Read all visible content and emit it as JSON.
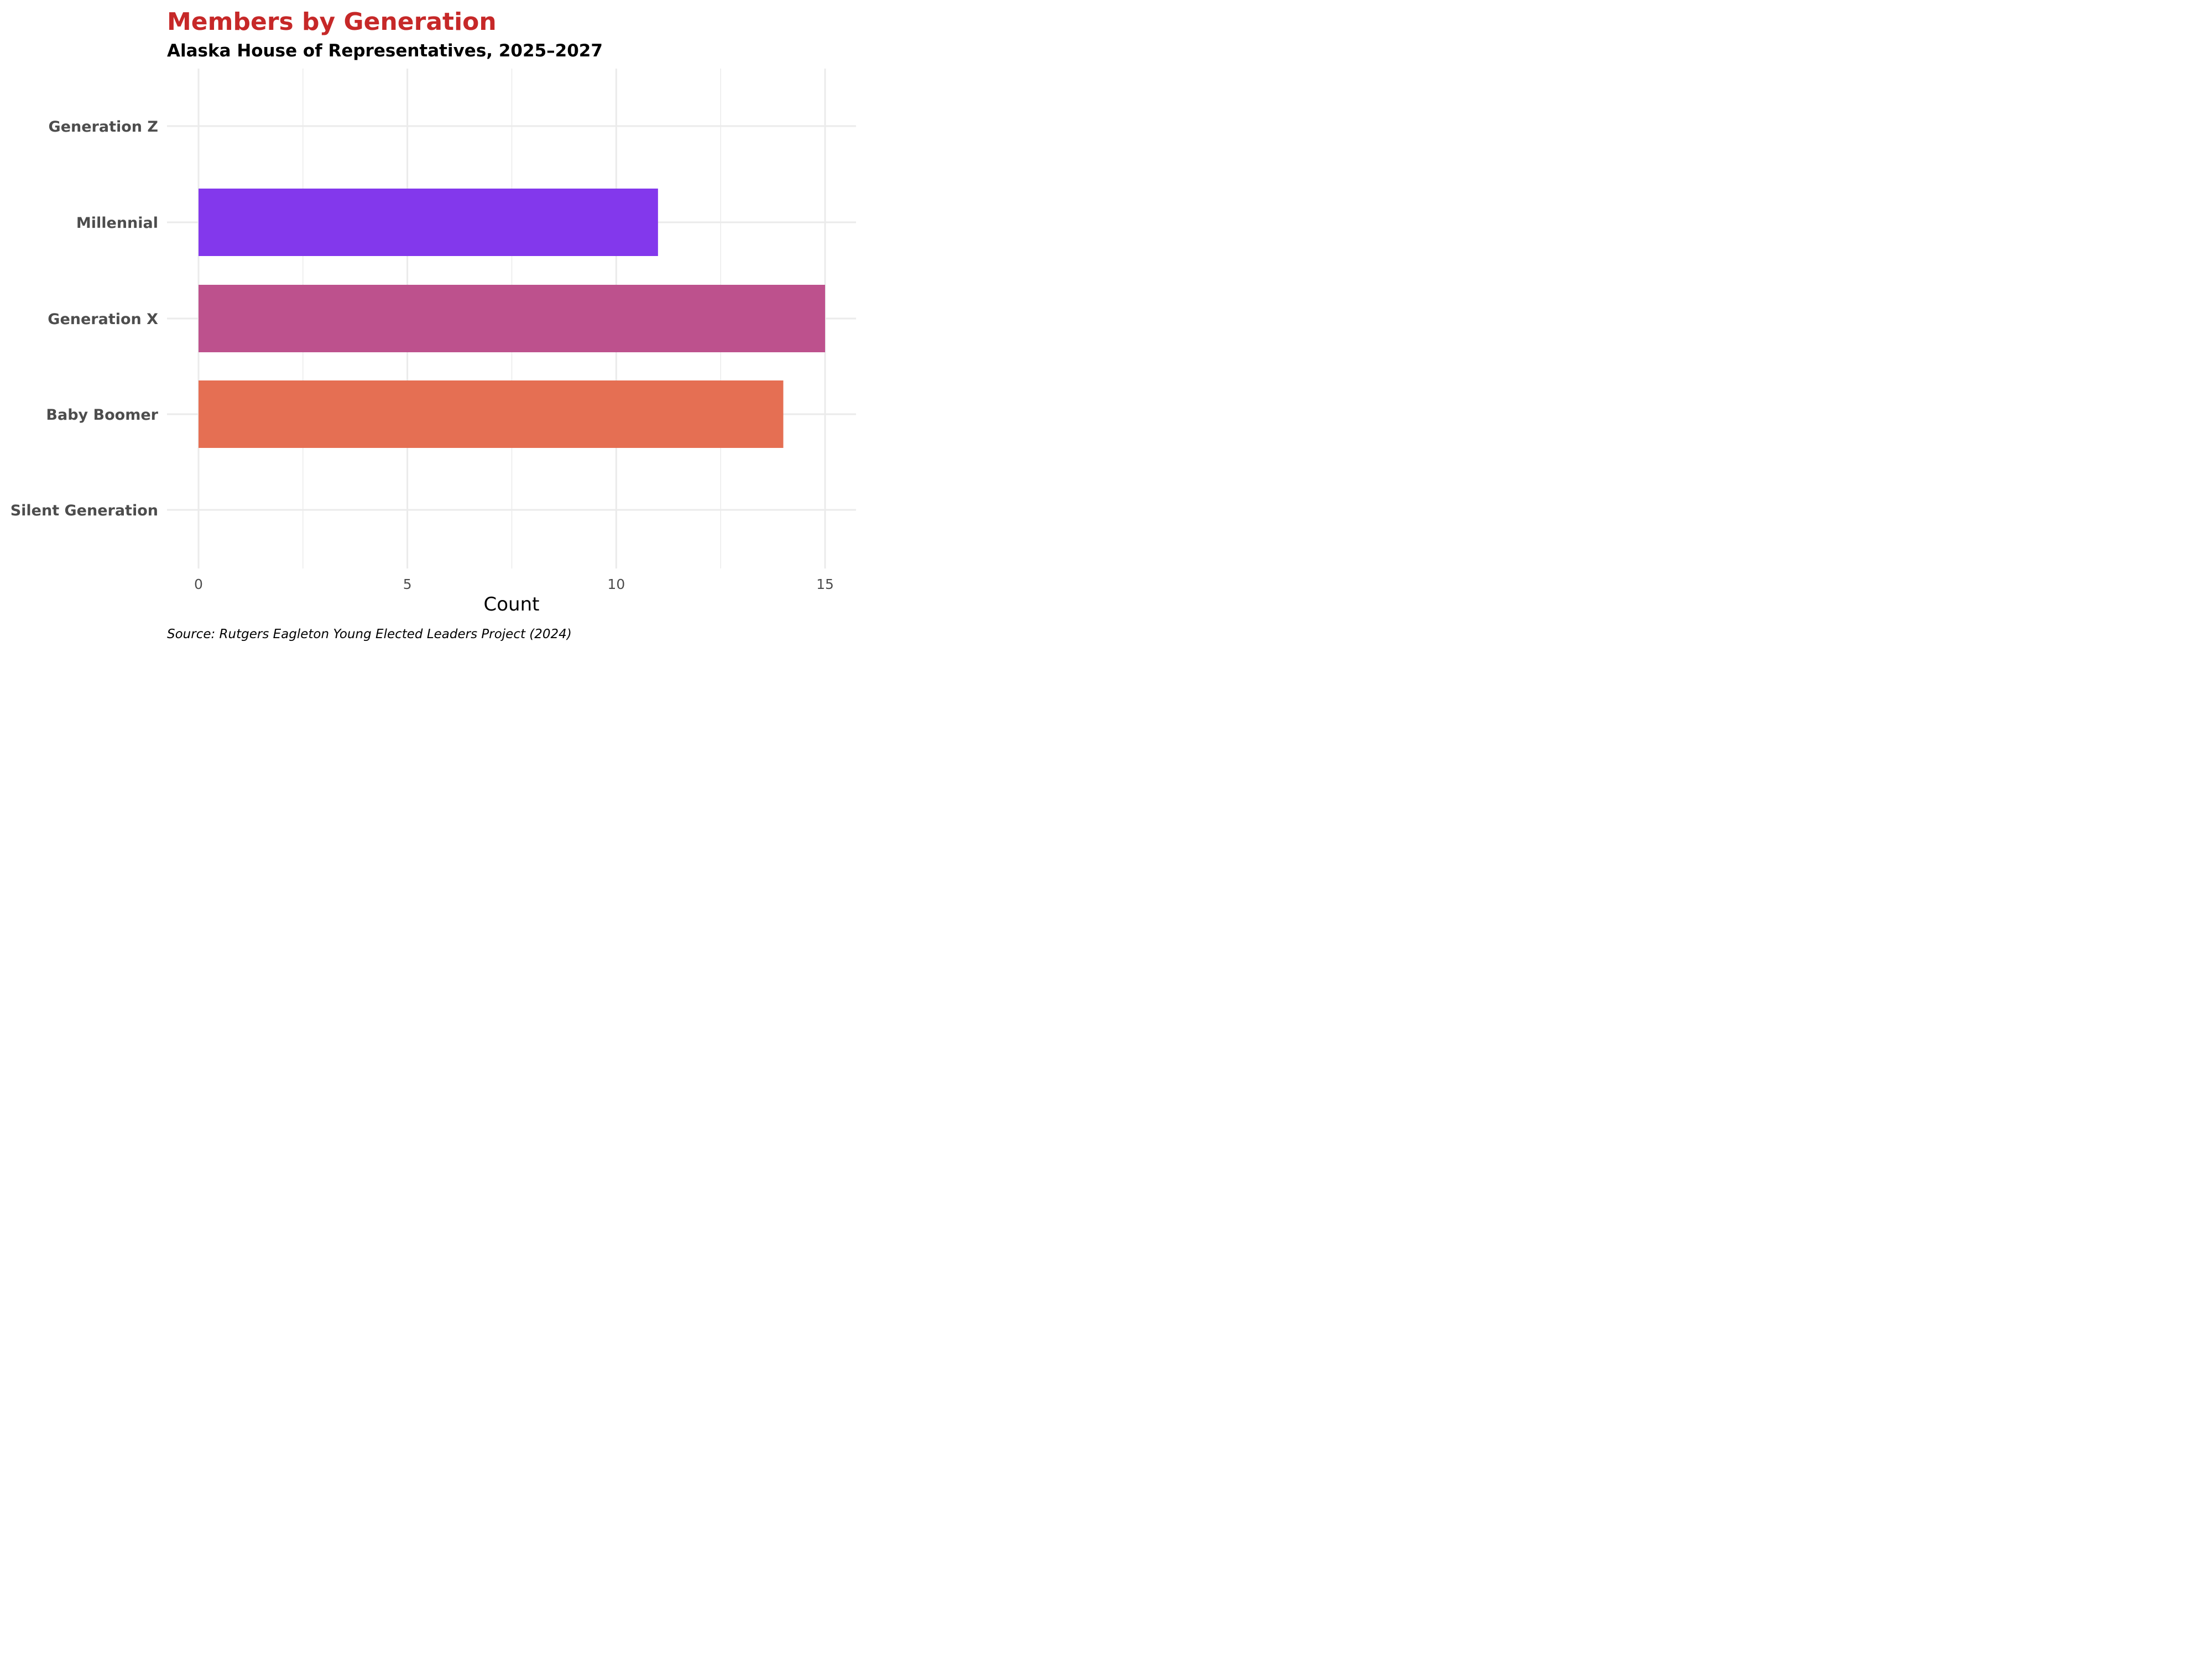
{
  "chart_data": {
    "type": "bar",
    "orientation": "horizontal",
    "title": "Members by Generation",
    "subtitle": "Alaska House of Representatives, 2025–2027",
    "caption": "Source: Rutgers Eagleton Young Elected Leaders Project (2024)",
    "xlabel": "Count",
    "ylabel": "",
    "categories": [
      "Generation Z",
      "Millennial",
      "Generation X",
      "Baby Boomer",
      "Silent Generation"
    ],
    "values": [
      0,
      11,
      15,
      14,
      0
    ],
    "colors": [
      "#7B2FBE",
      "#8338EC",
      "#BD518D",
      "#E56F53",
      "#F3A35C"
    ],
    "xticks": [
      "0",
      "5",
      "10",
      "15"
    ],
    "xlim": [
      0,
      15
    ],
    "grid": true,
    "legend": "none"
  }
}
